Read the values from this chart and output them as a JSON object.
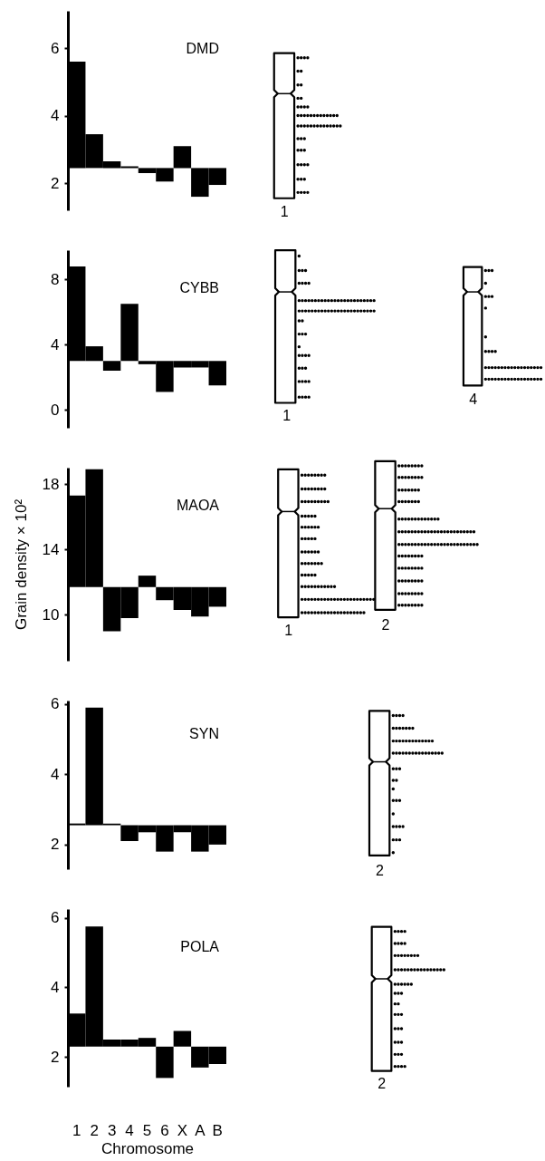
{
  "chart_data": [
    {
      "type": "bar",
      "title": "DMD",
      "categories": [
        null,
        null,
        null,
        null,
        null,
        null,
        null,
        null,
        null
      ],
      "base": [
        2.45,
        2.45,
        2.45,
        2.45,
        2.45,
        2.45,
        2.45,
        2.45,
        2.45
      ],
      "values": [
        3.15,
        1.0,
        0.2,
        0.05,
        -0.15,
        -0.4,
        0.65,
        -0.85,
        -0.5
      ],
      "color": "#000000",
      "ylim": [
        1.2,
        7.1
      ],
      "yticks": [
        2,
        4,
        6
      ],
      "annotations": [
        "1"
      ]
    },
    {
      "type": "bar",
      "title": "CYBB",
      "categories": [
        null,
        null,
        null,
        null,
        null,
        null,
        null,
        null,
        null
      ],
      "base": [
        3,
        3,
        3,
        3,
        3,
        3,
        3,
        3,
        3
      ],
      "values": [
        5.8,
        0.9,
        -0.6,
        3.5,
        -0.2,
        -1.9,
        -0.4,
        -0.4,
        -1.5
      ],
      "color": "#000000",
      "ylim": [
        -1.1,
        9.8
      ],
      "yticks": [
        0,
        4,
        8
      ],
      "annotations": [
        "1",
        "4"
      ]
    },
    {
      "type": "bar",
      "title": "MAOA",
      "ylabel": "Grain density × 10²",
      "categories": [
        null,
        null,
        null,
        null,
        null,
        null,
        null,
        null,
        null
      ],
      "base": [
        11.7,
        11.7,
        11.7,
        11.7,
        11.7,
        11.7,
        11.7,
        11.7,
        11.7
      ],
      "values": [
        5.6,
        7.2,
        -2.7,
        -1.9,
        0.7,
        -0.8,
        -1.4,
        -1.8,
        -1.2
      ],
      "color": "#000000",
      "ylim": [
        7.2,
        19
      ],
      "yticks": [
        10,
        14,
        18
      ],
      "annotations": [
        "1",
        "2"
      ]
    },
    {
      "type": "bar",
      "title": "SYN",
      "categories": [
        null,
        null,
        null,
        null,
        null,
        null,
        null,
        null,
        null
      ],
      "base": [
        2.55,
        2.55,
        2.55,
        2.55,
        2.55,
        2.55,
        2.55,
        2.55,
        2.55
      ],
      "values": [
        0.05,
        3.35,
        0.05,
        -0.45,
        -0.2,
        -0.75,
        -0.2,
        -0.75,
        -0.55
      ],
      "color": "#000000",
      "ylim": [
        1.3,
        6.1
      ],
      "yticks": [
        2,
        4,
        6
      ],
      "annotations": [
        "2"
      ]
    },
    {
      "type": "bar",
      "title": "POLA",
      "xlabel": "Chromosome",
      "categories": [
        "1",
        "2",
        "3",
        "4",
        "5",
        "6",
        "X",
        "A",
        "B"
      ],
      "base": [
        2.3,
        2.3,
        2.3,
        2.3,
        2.3,
        2.3,
        2.3,
        2.3,
        2.3
      ],
      "values": [
        0.95,
        3.45,
        0.2,
        0.2,
        0.25,
        -0.9,
        0.45,
        -0.6,
        -0.5
      ],
      "color": "#000000",
      "ylim": [
        1.15,
        6.25
      ],
      "yticks": [
        2,
        4,
        6
      ],
      "annotations": [
        "2"
      ]
    }
  ]
}
